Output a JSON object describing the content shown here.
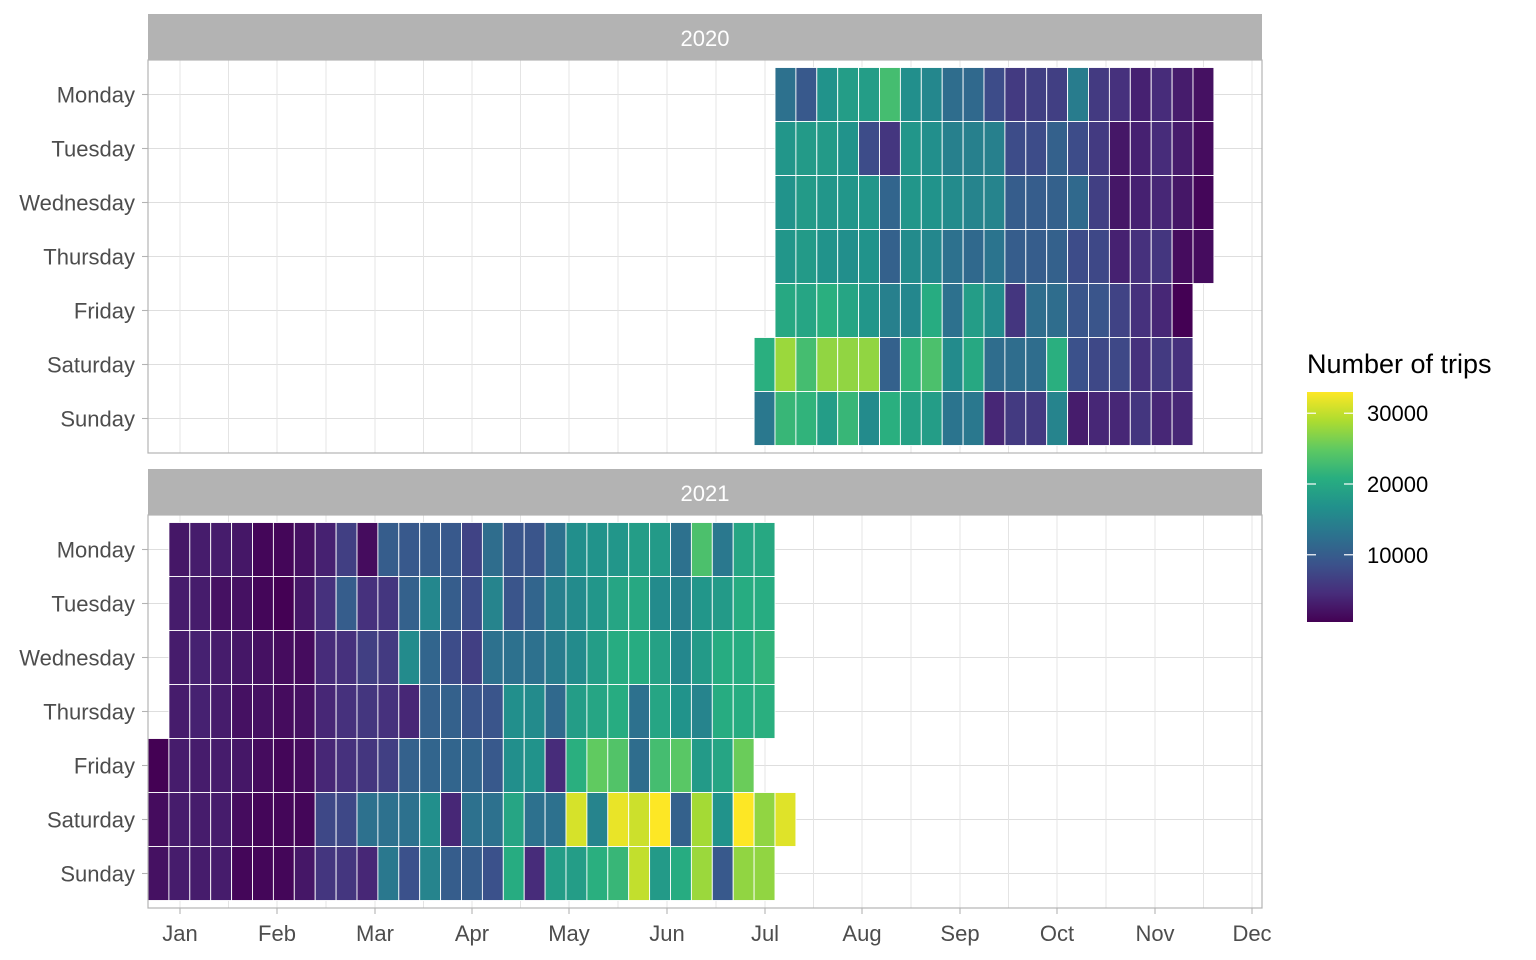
{
  "chart_data": {
    "type": "heatmap",
    "title": "",
    "xlabel": "",
    "ylabel": "",
    "x_tick_labels": [
      "Jan",
      "Feb",
      "Mar",
      "Apr",
      "May",
      "Jun",
      "Jul",
      "Aug",
      "Sep",
      "Oct",
      "Nov",
      "Dec"
    ],
    "y_categories": [
      "Monday",
      "Tuesday",
      "Wednesday",
      "Thursday",
      "Friday",
      "Saturday",
      "Sunday"
    ],
    "legend": {
      "title": "Number of trips",
      "placement": "right",
      "ticks": [
        10000,
        20000,
        30000
      ],
      "tick_labels": [
        "10000",
        "20000",
        "30000"
      ],
      "range": [
        500,
        33000
      ],
      "palette": "viridis"
    },
    "grid": true,
    "cell_unit": "weekly columns; rows are weekdays; value = number of trips",
    "panels": [
      {
        "facet_label": "2020",
        "first_week_start": "2020-07-18",
        "rows": {
          "Saturday": [
            21000,
            28000,
            23000,
            27500,
            27500,
            27500,
            10500,
            21500,
            23500,
            16000,
            20000,
            12000,
            12000,
            12000,
            21000,
            8500,
            7500,
            7500,
            5000,
            6000,
            5000
          ],
          "Sunday": [
            13500,
            22000,
            21500,
            18500,
            22000,
            16000,
            21000,
            19000,
            18500,
            13000,
            13500,
            4000,
            6000,
            6000,
            15000,
            3000,
            4000,
            4000,
            5500,
            4000,
            4000
          ],
          "Monday": [
            null,
            12500,
            9500,
            17000,
            18500,
            18500,
            23000,
            16500,
            15500,
            12000,
            11500,
            8000,
            6000,
            6500,
            6500,
            14000,
            6000,
            5000,
            3500,
            4500,
            3000,
            2000
          ],
          "Tuesday": [
            null,
            17500,
            18000,
            18000,
            17000,
            8000,
            5500,
            17500,
            16500,
            14500,
            14500,
            14500,
            8000,
            8000,
            10500,
            8000,
            6000,
            2500,
            3500,
            4500,
            3000,
            1500
          ],
          "Wednesday": [
            null,
            17000,
            18000,
            17500,
            17500,
            17500,
            11000,
            17500,
            17000,
            16000,
            15000,
            15000,
            10000,
            10000,
            10500,
            11500,
            6500,
            2500,
            3500,
            4000,
            2500,
            1000
          ],
          "Thursday": [
            null,
            17500,
            18000,
            17000,
            16500,
            17000,
            10500,
            16000,
            15500,
            12500,
            11500,
            13000,
            10000,
            10000,
            10500,
            8000,
            7500,
            3500,
            5000,
            5500,
            1500,
            1500
          ],
          "Friday": [
            null,
            20000,
            19500,
            21000,
            19500,
            17500,
            14500,
            15500,
            20500,
            12500,
            18500,
            16000,
            5500,
            12000,
            12000,
            9000,
            9000,
            7000,
            5000,
            4000,
            500
          ]
        }
      },
      {
        "facet_label": "2021",
        "first_week_start": "2020-12-26",
        "rows": {
          "Saturday": [
            1500,
            3000,
            3000,
            3000,
            1500,
            1000,
            1000,
            1000,
            7500,
            7500,
            12500,
            12500,
            12500,
            16500,
            4000,
            12500,
            12500,
            19500,
            12500,
            12500,
            31000,
            15000,
            32000,
            30500,
            33000,
            10500,
            28500,
            17000,
            33000,
            27500,
            31500
          ],
          "Sunday": [
            2000,
            3000,
            3000,
            3000,
            1000,
            1000,
            1000,
            2500,
            5500,
            5500,
            4000,
            13500,
            8500,
            15000,
            10000,
            10000,
            8500,
            20500,
            4500,
            18500,
            18500,
            21000,
            22000,
            30000,
            18000,
            20500,
            28000,
            9500,
            27500,
            27500
          ],
          "Monday": [
            null,
            2500,
            3000,
            3000,
            2500,
            1000,
            1000,
            2000,
            3500,
            6500,
            1500,
            10000,
            9500,
            10000,
            9500,
            7000,
            12000,
            9000,
            9000,
            12500,
            16500,
            17000,
            17500,
            18500,
            18000,
            12500,
            23500,
            13500,
            19500,
            20000
          ],
          "Tuesday": [
            null,
            3000,
            3000,
            2000,
            2000,
            1000,
            500,
            2500,
            5000,
            10000,
            5000,
            5500,
            10500,
            15500,
            10000,
            8000,
            15000,
            9000,
            11000,
            14500,
            16000,
            17500,
            19500,
            20000,
            16000,
            14500,
            17500,
            18000,
            20500,
            20500
          ],
          "Wednesday": [
            null,
            3000,
            3500,
            3000,
            2500,
            2000,
            1500,
            1500,
            4500,
            5000,
            6500,
            6000,
            16000,
            11000,
            8000,
            6500,
            12500,
            12500,
            12500,
            14000,
            16000,
            18500,
            20500,
            20500,
            19000,
            15500,
            18000,
            20500,
            20500,
            21500
          ],
          "Thursday": [
            null,
            3000,
            3500,
            3000,
            2000,
            2000,
            1500,
            2000,
            4000,
            5000,
            5500,
            5000,
            4000,
            10500,
            10500,
            9000,
            9000,
            16500,
            16000,
            11500,
            18500,
            19500,
            20500,
            12500,
            19500,
            17000,
            15000,
            20500,
            20500,
            21000
          ],
          "Friday": [
            500,
            3000,
            3000,
            3000,
            2500,
            1500,
            1000,
            1500,
            4000,
            5000,
            5500,
            6500,
            10500,
            11000,
            11000,
            11000,
            9500,
            16500,
            17000,
            4500,
            21000,
            25000,
            24000,
            12000,
            23000,
            24500,
            18000,
            19500,
            25500
          ]
        }
      }
    ]
  }
}
